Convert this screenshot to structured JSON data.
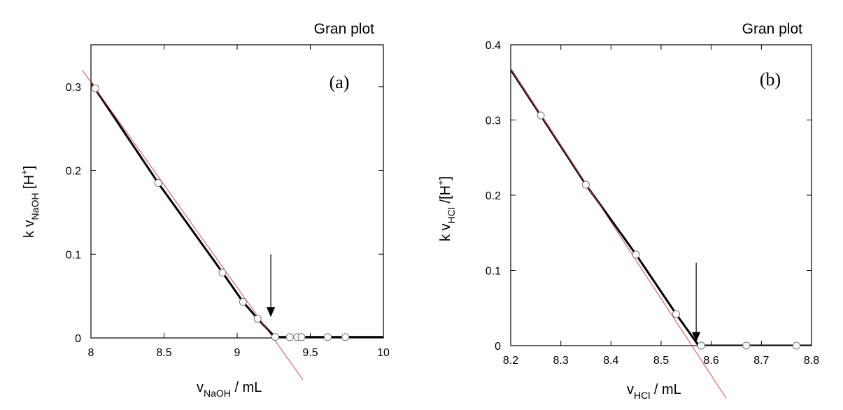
{
  "chart_data": [
    {
      "type": "scatter",
      "title": "Gran plot",
      "panel_label": "(a)",
      "xlabel": {
        "main": "v",
        "sub": "NaOH",
        "suffix": " / mL"
      },
      "ylabel": {
        "main": "k v",
        "sub": "NaOH",
        "suffix": " [H",
        "sup": "+",
        "end": "]"
      },
      "xlim": [
        8,
        10
      ],
      "ylim": [
        0,
        0.35
      ],
      "xticks": [
        8,
        8.5,
        9,
        9.5,
        10
      ],
      "yticks": [
        0,
        0.1,
        0.2,
        0.3
      ],
      "xtick_labels": [
        "8",
        "8.5",
        "9",
        "9.5",
        "10"
      ],
      "ytick_labels": [
        "0",
        "0.1",
        "0.2",
        "0.3"
      ],
      "series": [
        {
          "kind": "points",
          "x": [
            8.03,
            8.46,
            8.9,
            9.04,
            9.14,
            9.26,
            9.36,
            9.41,
            9.44,
            9.62,
            9.74
          ],
          "y": [
            0.298,
            0.185,
            0.078,
            0.043,
            0.023,
            0.001,
            0.001,
            0.001,
            0.001,
            0.001,
            0.001
          ]
        },
        {
          "kind": "curve",
          "color": "#000000",
          "x": [
            8.0,
            8.46,
            8.9,
            9.04,
            9.14,
            9.22,
            9.26,
            9.5,
            10.0
          ],
          "y": [
            0.305,
            0.185,
            0.078,
            0.043,
            0.023,
            0.008,
            0.001,
            0.001,
            0.001
          ]
        },
        {
          "kind": "fit-line",
          "color": "#e0464d",
          "x": [
            7.94,
            9.45
          ],
          "y": [
            0.32,
            -0.05
          ]
        }
      ],
      "annotations": [
        {
          "type": "arrow",
          "x": 9.23,
          "y_from": 0.1,
          "y_to": 0.025
        }
      ]
    },
    {
      "type": "scatter",
      "title": "Gran plot",
      "panel_label": "(b)",
      "xlabel": {
        "main": "v",
        "sub": "HCl",
        "suffix": " / mL"
      },
      "ylabel": {
        "main": "k v",
        "sub": "HCl",
        "suffix": " /[H",
        "sup": "+",
        "end": "]"
      },
      "xlim": [
        8.2,
        8.8
      ],
      "ylim": [
        0,
        0.4
      ],
      "xticks": [
        8.2,
        8.3,
        8.4,
        8.5,
        8.6,
        8.7,
        8.8
      ],
      "yticks": [
        0,
        0.1,
        0.2,
        0.3,
        0.4
      ],
      "xtick_labels": [
        "8.2",
        "8.3",
        "8.4",
        "8.5",
        "8.6",
        "8.7",
        "8.8"
      ],
      "ytick_labels": [
        "0",
        "0.1",
        "0.2",
        "0.3",
        "0.4"
      ],
      "series": [
        {
          "kind": "points",
          "x": [
            8.26,
            8.35,
            8.45,
            8.53,
            8.58,
            8.67,
            8.77
          ],
          "y": [
            0.306,
            0.214,
            0.121,
            0.042,
            0.0,
            0.0,
            0.0
          ]
        },
        {
          "kind": "curve",
          "color": "#000000",
          "x": [
            8.2,
            8.26,
            8.35,
            8.45,
            8.53,
            8.575,
            8.585,
            8.67,
            8.8
          ],
          "y": [
            0.367,
            0.306,
            0.214,
            0.121,
            0.042,
            0.0,
            0.0,
            0.0,
            0.0
          ]
        },
        {
          "kind": "fit-line",
          "color": "#e0464d",
          "x": [
            8.2,
            8.63
          ],
          "y": [
            0.368,
            -0.07
          ]
        }
      ],
      "annotations": [
        {
          "type": "arrow",
          "x": 8.57,
          "y_from": 0.11,
          "y_to": 0.005
        }
      ]
    }
  ]
}
